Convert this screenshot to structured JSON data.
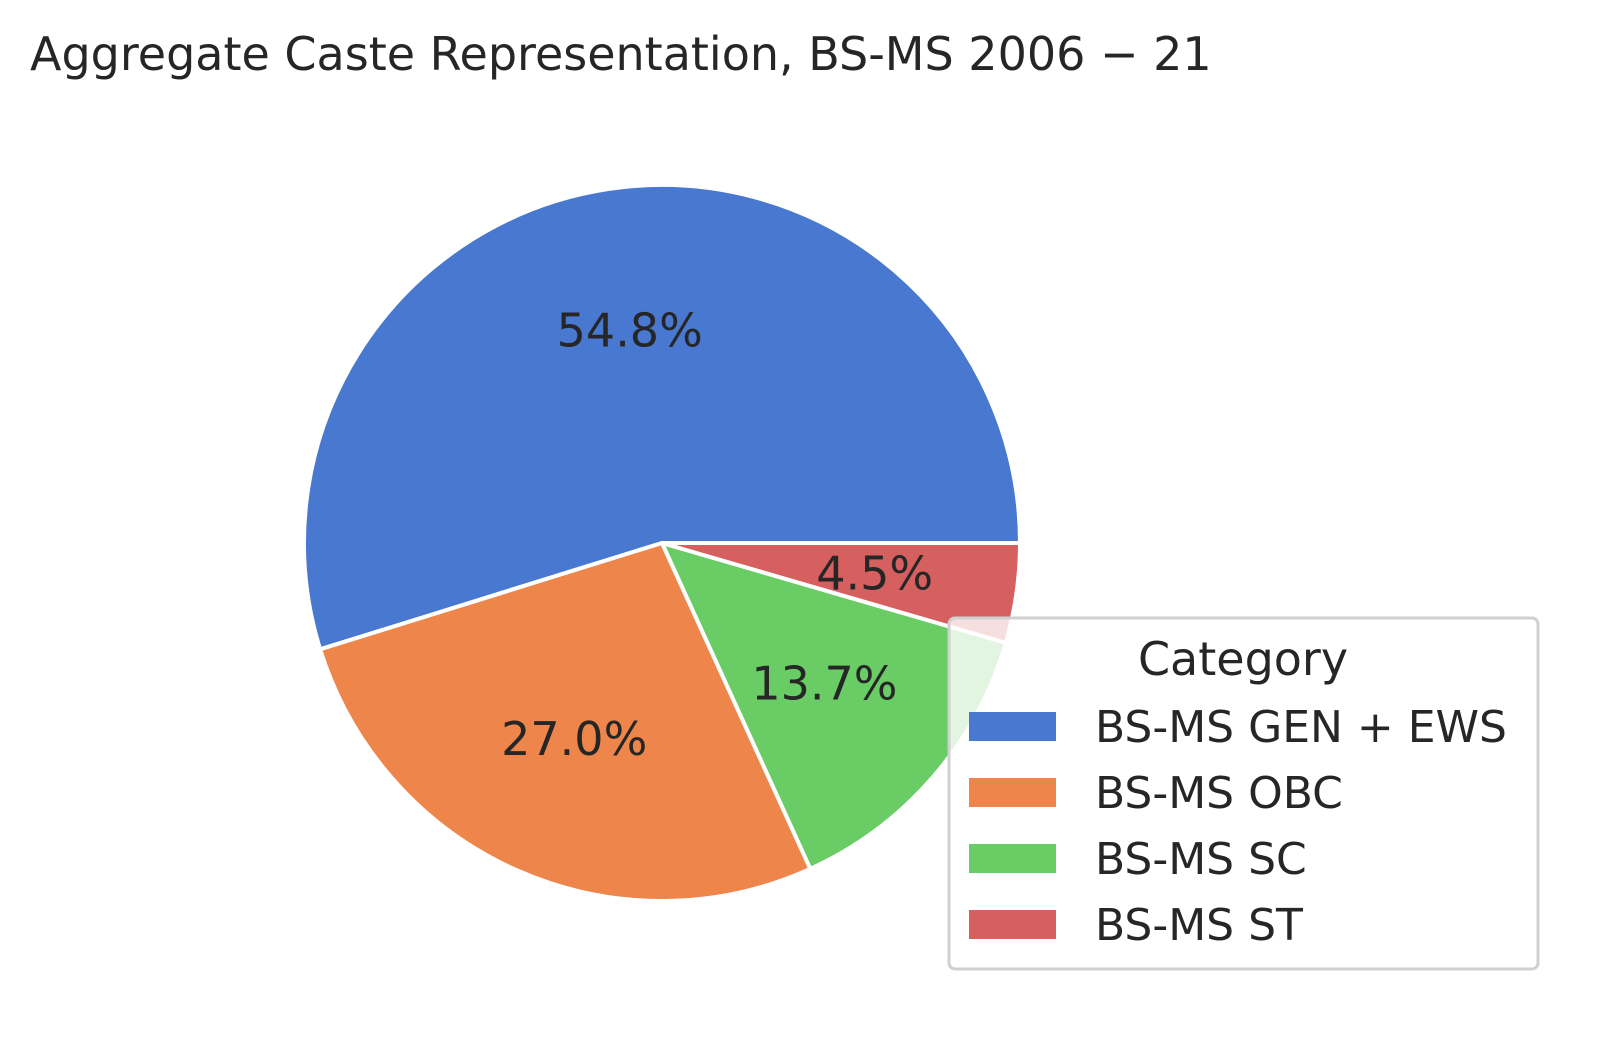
{
  "chart_data": {
    "type": "pie",
    "title": "Aggregate Caste Representation, BS-MS 2006 − 21",
    "categories": [
      "BS-MS GEN + EWS",
      "BS-MS OBC",
      "BS-MS SC",
      "BS-MS ST"
    ],
    "values": [
      54.8,
      27.0,
      13.7,
      4.5
    ],
    "labels": [
      "54.8%",
      "27.0%",
      "13.7%",
      "4.5%"
    ],
    "colors": [
      "#4878cf",
      "#ee854a",
      "#6acc64",
      "#d65f5f"
    ],
    "start_angle": 0,
    "direction": "counterclockwise",
    "legend": {
      "title": "Category",
      "placement": "lower-right"
    }
  }
}
